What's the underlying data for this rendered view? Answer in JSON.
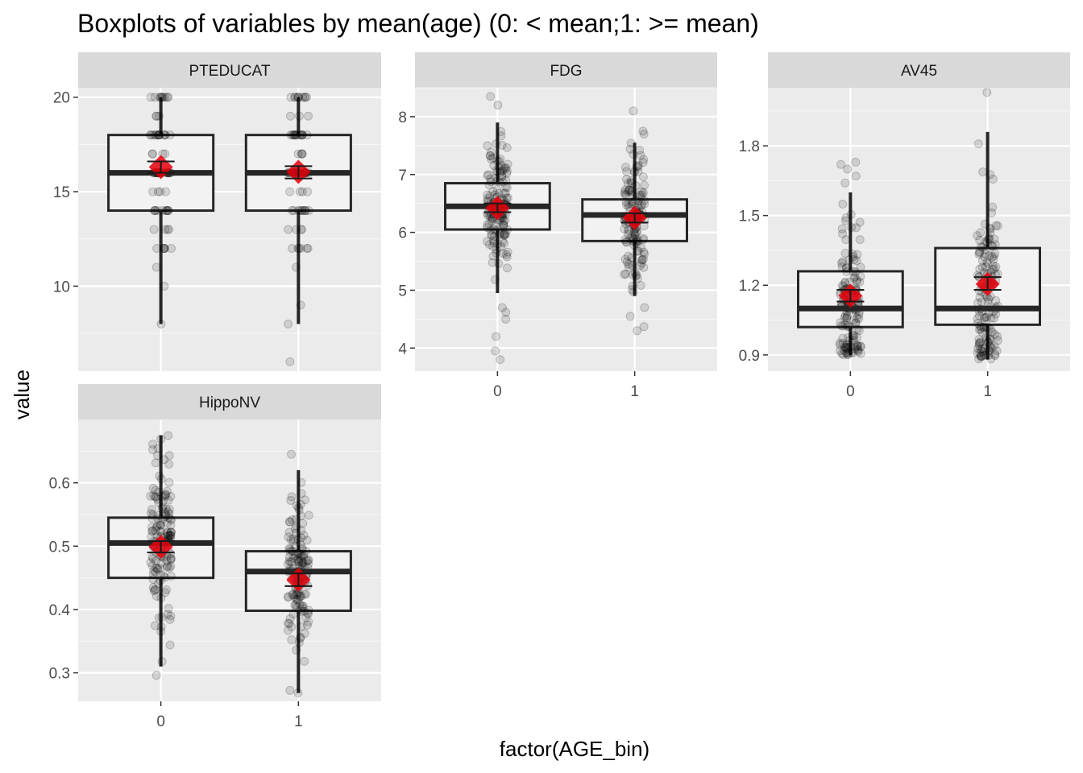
{
  "colors": {
    "panel_bg": "#ebebeb",
    "strip_bg": "#d9d9d9",
    "grid_major": "#ffffff",
    "box_fill": "#f2f2f2",
    "box_line": "#262626",
    "point": "#000000",
    "mean_marker": "#e8000b"
  },
  "chart_data": {
    "type": "boxplot",
    "title": "Boxplots of variables by mean(age) (0: < mean;1: >= mean)",
    "xlabel": "factor(AGE_bin)",
    "ylabel": "value",
    "x_tick_labels": [
      "0",
      "1"
    ],
    "facets": [
      {
        "name": "PTEDUCAT",
        "ylim": [
          5.5,
          20.5
        ],
        "yticks": [
          10,
          15,
          20
        ],
        "ytick_labels": [
          "10",
          "15",
          "20"
        ],
        "groups": [
          {
            "x": "0",
            "whisker_low": 8,
            "q1": 14,
            "median": 16,
            "q3": 18,
            "whisker_high": 20,
            "mean": 16.3,
            "mean_ci": [
              16.0,
              16.6
            ],
            "outliers": []
          },
          {
            "x": "1",
            "whisker_low": 8,
            "q1": 14,
            "median": 16,
            "q3": 18,
            "whisker_high": 20,
            "mean": 16.05,
            "mean_ci": [
              15.7,
              16.35
            ],
            "outliers": [
              6
            ]
          }
        ]
      },
      {
        "name": "FDG",
        "ylim": [
          3.6,
          8.5
        ],
        "yticks": [
          4,
          5,
          6,
          7,
          8
        ],
        "ytick_labels": [
          "4",
          "5",
          "6",
          "7",
          "8"
        ],
        "groups": [
          {
            "x": "0",
            "whisker_low": 4.95,
            "q1": 6.05,
            "median": 6.45,
            "q3": 6.85,
            "whisker_high": 7.9,
            "mean": 6.42,
            "mean_ci": [
              6.35,
              6.5
            ],
            "outliers": [
              3.8,
              3.95,
              4.2,
              4.5,
              4.62,
              4.7,
              8.2,
              8.35
            ]
          },
          {
            "x": "1",
            "whisker_low": 4.9,
            "q1": 5.85,
            "median": 6.3,
            "q3": 6.57,
            "whisker_high": 7.55,
            "mean": 6.25,
            "mean_ci": [
              6.17,
              6.33
            ],
            "outliers": [
              4.3,
              4.37,
              4.55,
              4.7,
              7.7,
              7.75,
              8.1
            ]
          }
        ]
      },
      {
        "name": "AV45",
        "ylim": [
          0.83,
          2.05
        ],
        "yticks": [
          0.9,
          1.2,
          1.5,
          1.8
        ],
        "ytick_labels": [
          "0.9",
          "1.2",
          "1.5",
          "1.8"
        ],
        "groups": [
          {
            "x": "0",
            "whisker_low": 0.9,
            "q1": 1.02,
            "median": 1.1,
            "q3": 1.26,
            "whisker_high": 1.6,
            "mean": 1.155,
            "mean_ci": [
              1.13,
              1.18
            ],
            "outliers": [
              1.64,
              1.67,
              1.7,
              1.72,
              1.73
            ]
          },
          {
            "x": "1",
            "whisker_low": 0.88,
            "q1": 1.03,
            "median": 1.1,
            "q3": 1.36,
            "whisker_high": 1.86,
            "mean": 1.205,
            "mean_ci": [
              1.18,
              1.235
            ],
            "outliers": [
              2.03
            ]
          }
        ]
      },
      {
        "name": "HippoNV",
        "ylim": [
          0.255,
          0.7
        ],
        "yticks": [
          0.3,
          0.4,
          0.5,
          0.6
        ],
        "ytick_labels": [
          "0.3",
          "0.4",
          "0.5",
          "0.6"
        ],
        "groups": [
          {
            "x": "0",
            "whisker_low": 0.31,
            "q1": 0.45,
            "median": 0.505,
            "q3": 0.545,
            "whisker_high": 0.675,
            "mean": 0.499,
            "mean_ci": [
              0.49,
              0.508
            ],
            "outliers": [
              0.296
            ]
          },
          {
            "x": "1",
            "whisker_low": 0.268,
            "q1": 0.398,
            "median": 0.46,
            "q3": 0.492,
            "whisker_high": 0.62,
            "mean": 0.447,
            "mean_ci": [
              0.437,
              0.457
            ],
            "outliers": [
              0.645
            ]
          }
        ]
      }
    ]
  }
}
